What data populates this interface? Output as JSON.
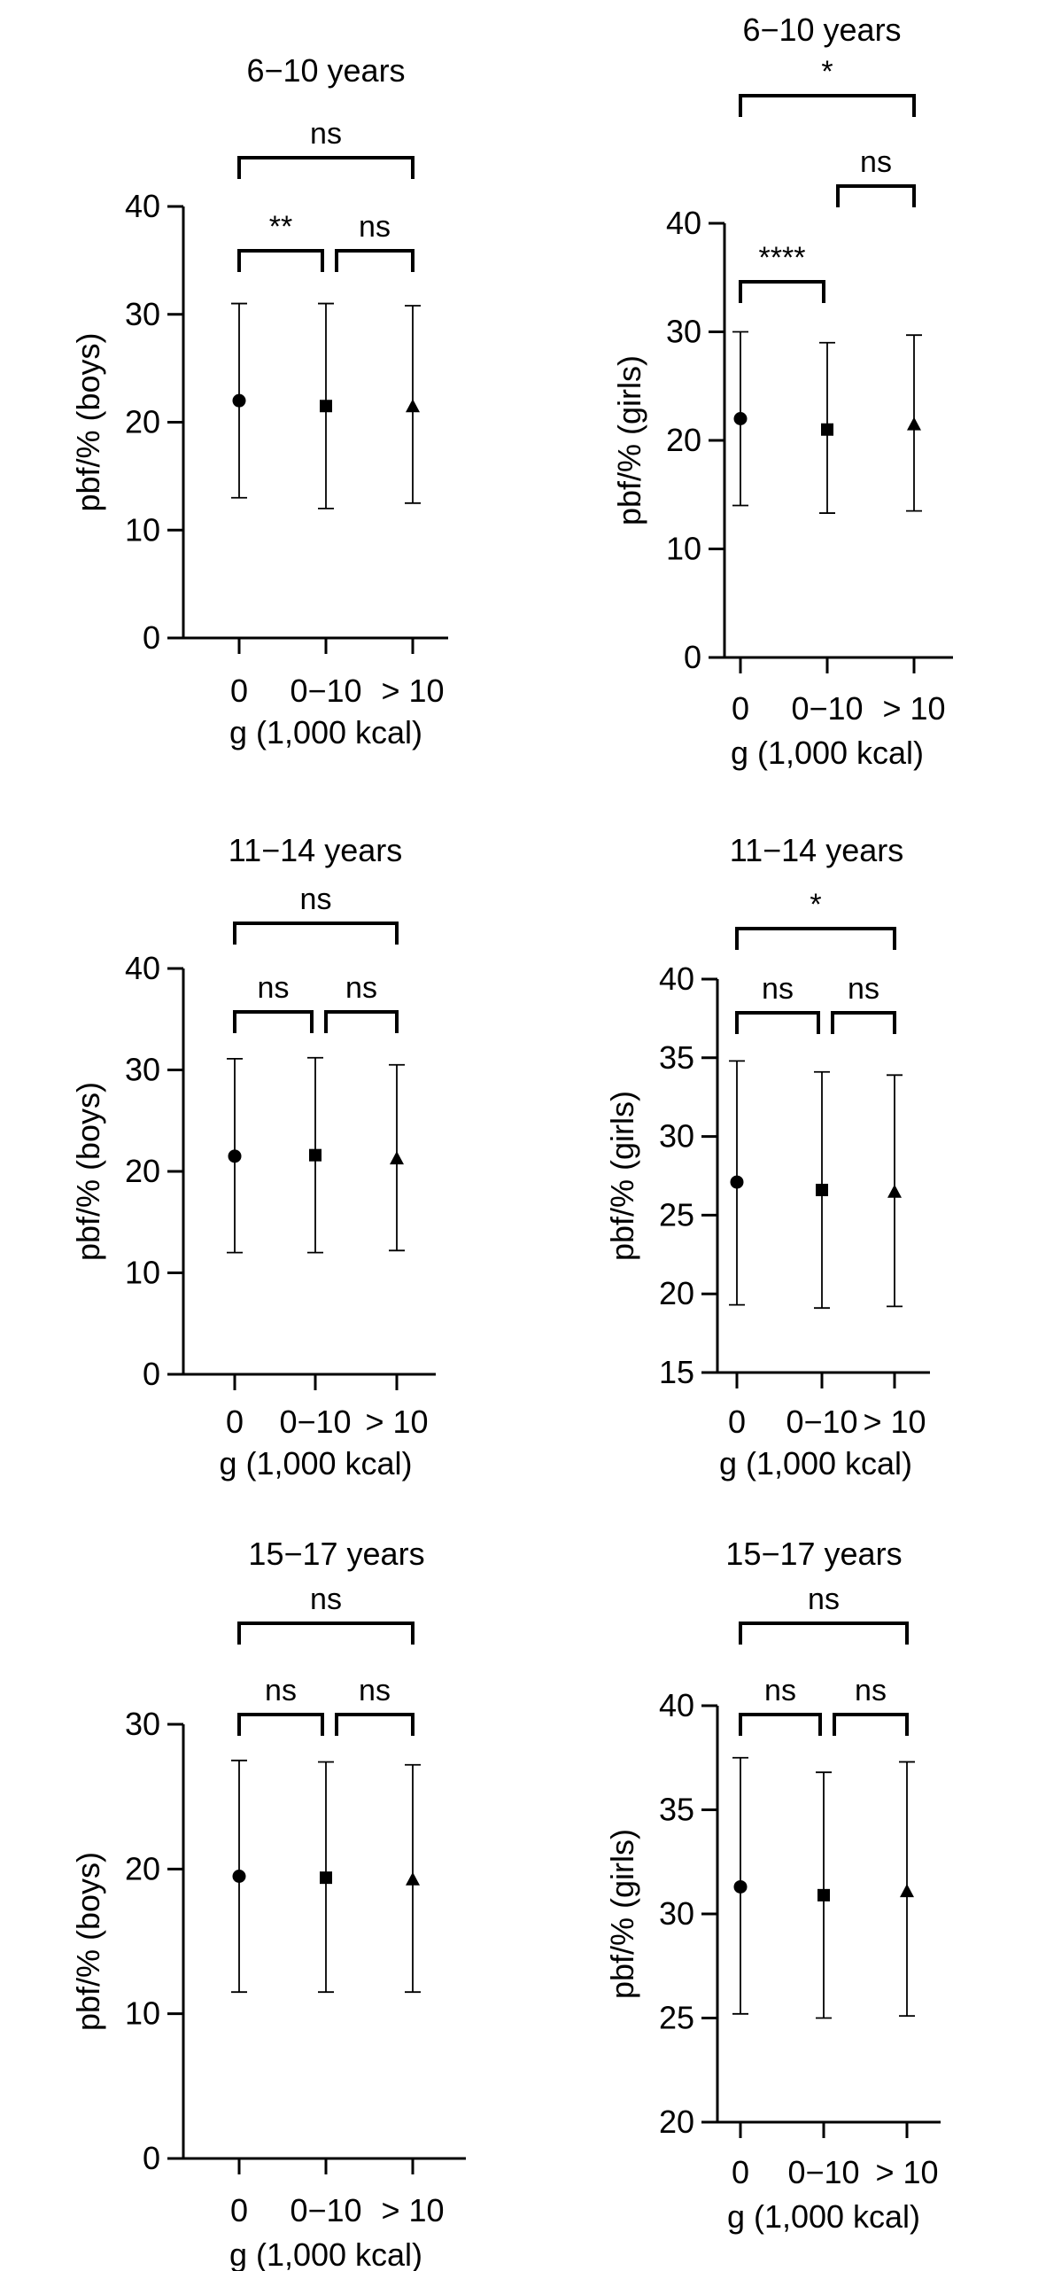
{
  "figure": {
    "categories": [
      "0",
      "0−10",
      "> 10"
    ],
    "xlabel": "g (1,000 kcal)",
    "markers": [
      "circle",
      "square",
      "triangle"
    ],
    "color": "#000000"
  },
  "chart_data": [
    {
      "type": "scatter",
      "title": "6−10 years",
      "ylabel": "pbf/% (boys)",
      "xlabel": "g (1,000 kcal)",
      "categories": [
        "0",
        "0−10",
        "> 10"
      ],
      "ylim": [
        0,
        40
      ],
      "yticks": [
        0,
        10,
        20,
        30,
        40
      ],
      "grid": false,
      "series": [
        {
          "values": [
            22.0,
            21.5,
            21.5
          ],
          "lower": [
            13.0,
            12.0,
            12.5
          ],
          "upper": [
            31.0,
            31.0,
            30.8
          ]
        }
      ],
      "annotations": [
        {
          "from": 0,
          "to": 1,
          "level": 1,
          "text": "**"
        },
        {
          "from": 1,
          "to": 2,
          "level": 1,
          "text": "ns"
        },
        {
          "from": 0,
          "to": 2,
          "level": 2,
          "text": "ns"
        }
      ]
    },
    {
      "type": "scatter",
      "title": "6−10 years",
      "ylabel": "pbf/% (girls)",
      "xlabel": "g (1,000 kcal)",
      "categories": [
        "0",
        "0−10",
        "> 10"
      ],
      "ylim": [
        0,
        40
      ],
      "yticks": [
        0,
        10,
        20,
        30,
        40
      ],
      "grid": false,
      "series": [
        {
          "values": [
            22.0,
            21.0,
            21.5
          ],
          "lower": [
            14.0,
            13.3,
            13.5
          ],
          "upper": [
            30.0,
            29.0,
            29.7
          ]
        }
      ],
      "annotations": [
        {
          "from": 0,
          "to": 1,
          "level": 1,
          "text": "****"
        },
        {
          "from": 1,
          "to": 2,
          "level": 2,
          "text": "ns"
        },
        {
          "from": 0,
          "to": 2,
          "level": 3,
          "text": "*"
        }
      ]
    },
    {
      "type": "scatter",
      "title": "11−14 years",
      "ylabel": "pbf/% (boys)",
      "xlabel": "g (1,000 kcal)",
      "categories": [
        "0",
        "0−10",
        "> 10"
      ],
      "ylim": [
        0,
        40
      ],
      "yticks": [
        0,
        10,
        20,
        30,
        40
      ],
      "grid": false,
      "series": [
        {
          "values": [
            21.5,
            21.6,
            21.3
          ],
          "lower": [
            12.0,
            12.0,
            12.2
          ],
          "upper": [
            31.1,
            31.2,
            30.5
          ]
        }
      ],
      "annotations": [
        {
          "from": 0,
          "to": 1,
          "level": 1,
          "text": "ns"
        },
        {
          "from": 1,
          "to": 2,
          "level": 1,
          "text": "ns"
        },
        {
          "from": 0,
          "to": 2,
          "level": 2,
          "text": "ns"
        }
      ]
    },
    {
      "type": "scatter",
      "title": "11−14 years",
      "ylabel": "pbf/% (girls)",
      "xlabel": "g (1,000 kcal)",
      "categories": [
        "0",
        "0−10",
        "> 10"
      ],
      "ylim": [
        15,
        40
      ],
      "yticks": [
        15,
        20,
        25,
        30,
        35,
        40
      ],
      "grid": false,
      "series": [
        {
          "values": [
            27.1,
            26.6,
            26.5
          ],
          "lower": [
            19.3,
            19.1,
            19.2
          ],
          "upper": [
            34.8,
            34.1,
            33.9
          ]
        }
      ],
      "annotations": [
        {
          "from": 0,
          "to": 1,
          "level": 1,
          "text": "ns"
        },
        {
          "from": 1,
          "to": 2,
          "level": 1,
          "text": "ns"
        },
        {
          "from": 0,
          "to": 2,
          "level": 2,
          "text": "*"
        }
      ]
    },
    {
      "type": "scatter",
      "title": "15−17 years",
      "ylabel": "pbf/% (boys)",
      "xlabel": "g (1,000 kcal)",
      "categories": [
        "0",
        "0−10",
        "> 10"
      ],
      "ylim": [
        0,
        30
      ],
      "yticks": [
        0,
        10,
        20,
        30
      ],
      "grid": false,
      "series": [
        {
          "values": [
            19.5,
            19.4,
            19.3
          ],
          "lower": [
            11.5,
            11.5,
            11.5
          ],
          "upper": [
            27.5,
            27.4,
            27.2
          ]
        }
      ],
      "annotations": [
        {
          "from": 0,
          "to": 1,
          "level": 1,
          "text": "ns"
        },
        {
          "from": 1,
          "to": 2,
          "level": 1,
          "text": "ns"
        },
        {
          "from": 0,
          "to": 2,
          "level": 2,
          "text": "ns"
        }
      ]
    },
    {
      "type": "scatter",
      "title": "15−17 years",
      "ylabel": "pbf/% (girls)",
      "xlabel": "g (1,000 kcal)",
      "categories": [
        "0",
        "0−10",
        "> 10"
      ],
      "ylim": [
        20,
        40
      ],
      "yticks": [
        20,
        25,
        30,
        35,
        40
      ],
      "grid": false,
      "series": [
        {
          "values": [
            31.3,
            30.9,
            31.1
          ],
          "lower": [
            25.2,
            25.0,
            25.1
          ],
          "upper": [
            37.5,
            36.8,
            37.3
          ]
        }
      ],
      "annotations": [
        {
          "from": 0,
          "to": 1,
          "level": 1,
          "text": "ns"
        },
        {
          "from": 1,
          "to": 2,
          "level": 1,
          "text": "ns"
        },
        {
          "from": 0,
          "to": 2,
          "level": 2,
          "text": "ns"
        }
      ]
    }
  ]
}
